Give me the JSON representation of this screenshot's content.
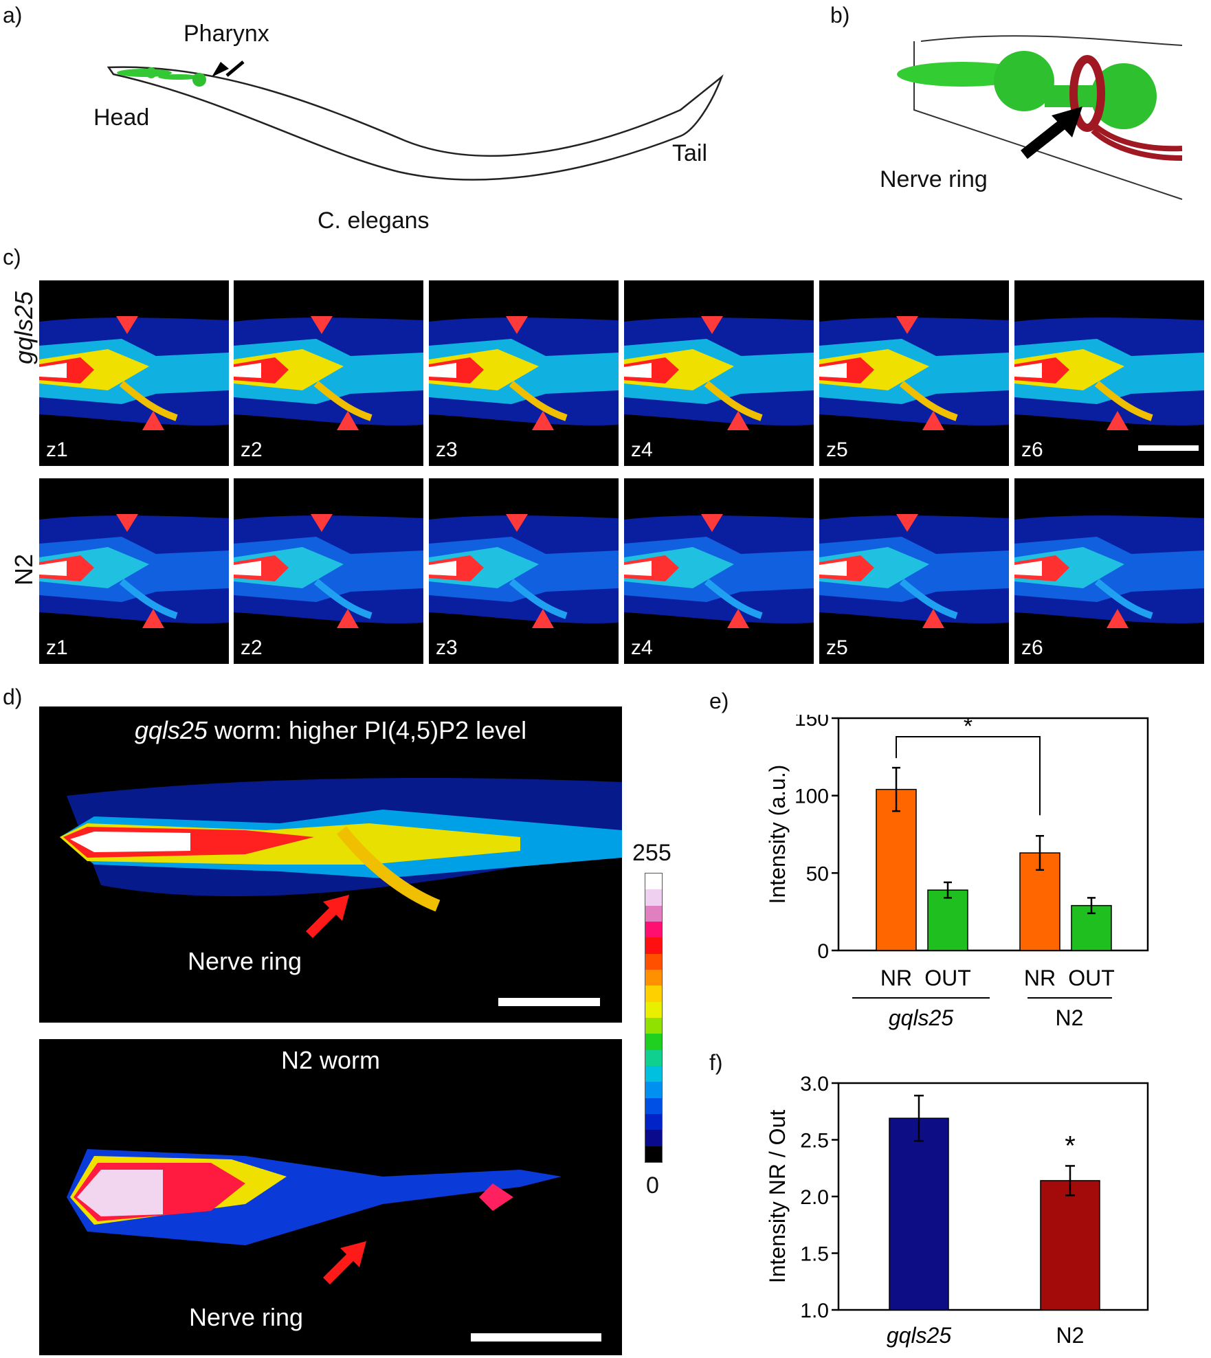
{
  "panels": {
    "a": {
      "letter": "a)",
      "labels": {
        "pharynx": "Pharynx",
        "head": "Head",
        "tail": "Tail",
        "organism": "C. elegans"
      }
    },
    "b": {
      "letter": "b)",
      "labels": {
        "nerve_ring": "Nerve ring"
      }
    },
    "c": {
      "letter": "c)",
      "rows": [
        {
          "label": "gqls25",
          "slices": [
            "z1",
            "z2",
            "z3",
            "z4",
            "z5",
            "z6"
          ]
        },
        {
          "label": "N2",
          "slices": [
            "z1",
            "z2",
            "z3",
            "z4",
            "z5",
            "z6"
          ]
        }
      ]
    },
    "d": {
      "letter": "d)",
      "top": {
        "title_italic": "gqls25",
        "title_rest": " worm: higher PI(4,5)P2 level",
        "arrow_label": "Nerve ring"
      },
      "bottom": {
        "title": "N2 worm",
        "arrow_label": "Nerve ring"
      },
      "colorbar": {
        "max": "255",
        "min": "0",
        "colors": [
          "#000000",
          "#0a0a8c",
          "#0024c8",
          "#0050e6",
          "#0090f0",
          "#00c0e0",
          "#10d090",
          "#20d020",
          "#90e000",
          "#e8f000",
          "#ffd000",
          "#ff9000",
          "#ff5000",
          "#ff1010",
          "#ff1070",
          "#e080c0",
          "#f0d0f0",
          "#ffffff"
        ]
      }
    },
    "e": {
      "letter": "e)",
      "chart_data": {
        "type": "bar",
        "ylabel": "Intensity (a.u.)",
        "ylim": [
          0,
          150
        ],
        "yticks": [
          "0",
          "50",
          "100",
          "150"
        ],
        "categories": [
          "NR",
          "OUT",
          "NR",
          "OUT"
        ],
        "groups": [
          "gqls25",
          "N2"
        ],
        "values": [
          104,
          39,
          63,
          29
        ],
        "errors": [
          14,
          5,
          11,
          5
        ],
        "colors": [
          "#ff6600",
          "#1fbf1f",
          "#ff6600",
          "#1fbf1f"
        ],
        "significance": "*"
      }
    },
    "f": {
      "letter": "f)",
      "chart_data": {
        "type": "bar",
        "ylabel": "Intensity NR / Out",
        "ylim": [
          1.0,
          3.0
        ],
        "yticks": [
          "1.0",
          "1.5",
          "2.0",
          "2.5",
          "3.0"
        ],
        "categories": [
          "gqls25",
          "N2"
        ],
        "values": [
          2.69,
          2.14
        ],
        "errors": [
          0.2,
          0.13
        ],
        "colors": [
          "#0d0d85",
          "#a30b0b"
        ],
        "significance": "*"
      }
    }
  }
}
